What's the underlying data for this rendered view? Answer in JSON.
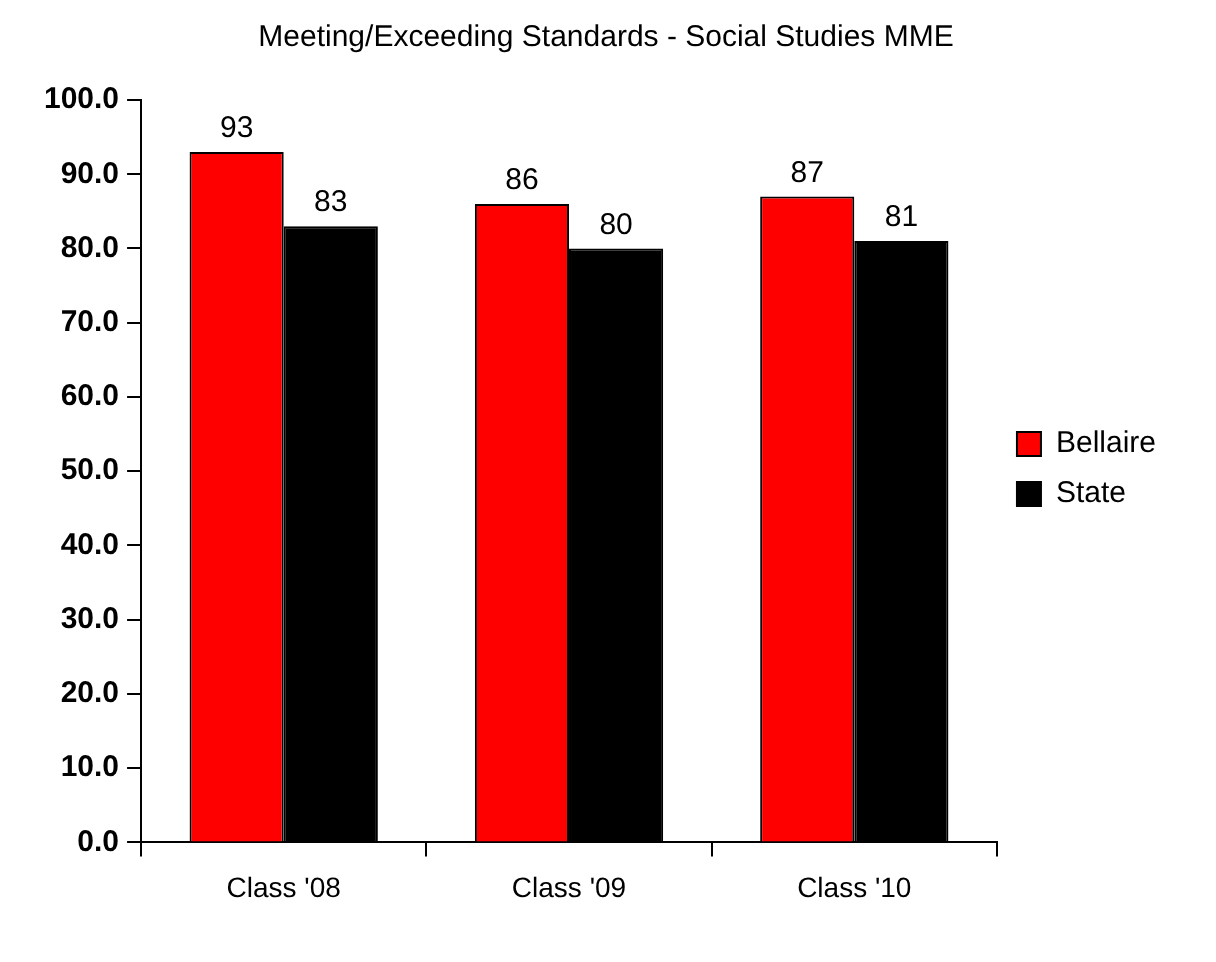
{
  "chart_data": {
    "type": "bar",
    "title": "Meeting/Exceeding Standards - Social Studies MME",
    "categories": [
      "Class '08",
      "Class '09",
      "Class '10"
    ],
    "series": [
      {
        "name": "Bellaire",
        "color": "#ff0000",
        "values": [
          93,
          86,
          87
        ]
      },
      {
        "name": "State",
        "color": "#000000",
        "values": [
          83,
          80,
          81
        ]
      }
    ],
    "ylim": [
      0,
      100
    ],
    "yticks": [
      {
        "value": 0,
        "label": "0.0"
      },
      {
        "value": 10,
        "label": "10.0"
      },
      {
        "value": 20,
        "label": "20.0"
      },
      {
        "value": 30,
        "label": "30.0"
      },
      {
        "value": 40,
        "label": "40.0"
      },
      {
        "value": 50,
        "label": "50.0"
      },
      {
        "value": 60,
        "label": "60.0"
      },
      {
        "value": 70,
        "label": "70.0"
      },
      {
        "value": 80,
        "label": "80.0"
      },
      {
        "value": 90,
        "label": "90.0"
      },
      {
        "value": 100,
        "label": "100.0"
      }
    ],
    "grid": false,
    "legend": "right",
    "data_labels": true
  }
}
